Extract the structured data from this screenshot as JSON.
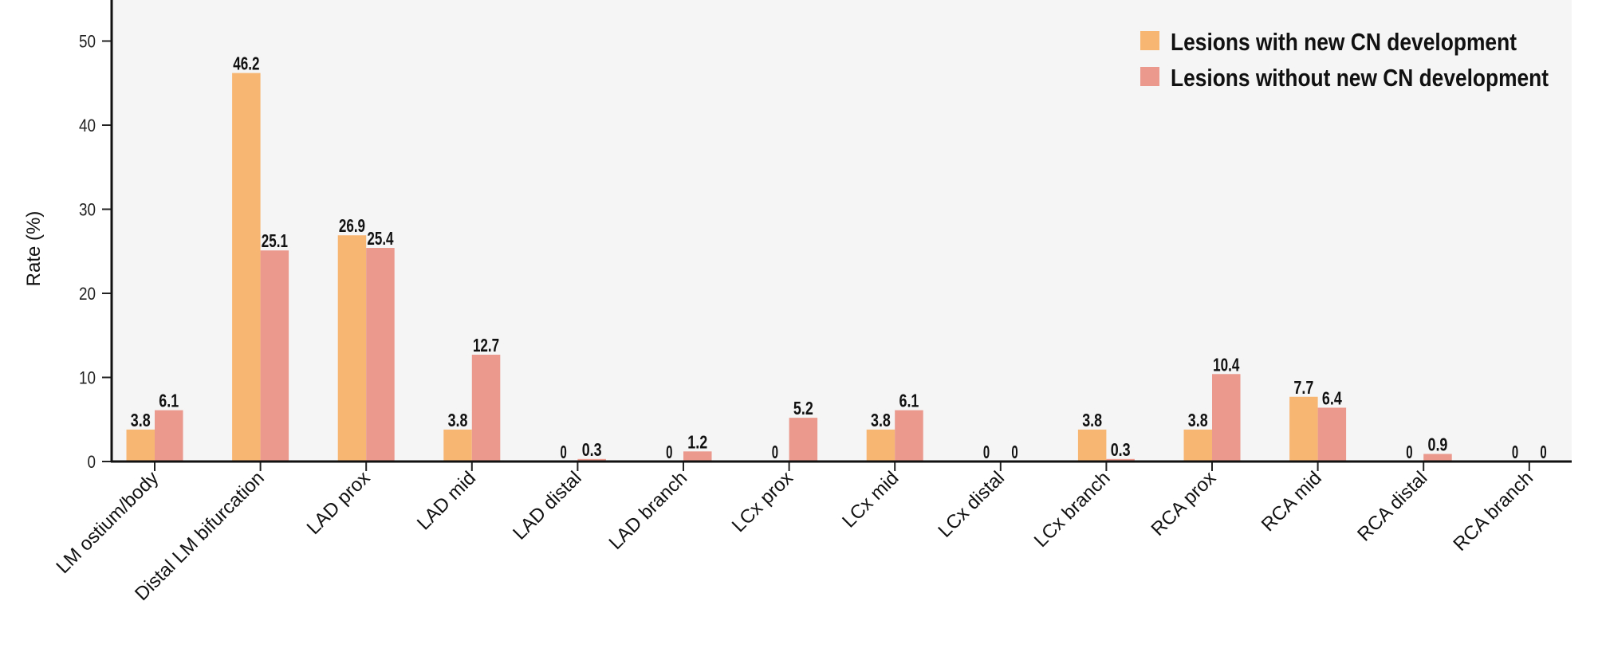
{
  "chart_data": {
    "type": "bar",
    "title": "",
    "xlabel": "",
    "ylabel": "Rate (%)",
    "ylim": [
      0,
      55
    ],
    "yticks": [
      0,
      10,
      20,
      30,
      40,
      50
    ],
    "grid": false,
    "legend_position": "top-right",
    "categories": [
      "LM ostium/body",
      "Distal LM bifurcation",
      "LAD prox",
      "LAD mid",
      "LAD distal",
      "LAD branch",
      "LCx prox",
      "LCx mid",
      "LCx distal",
      "LCx branch",
      "RCA prox",
      "RCA mid",
      "RCA distal",
      "RCA branch"
    ],
    "series": [
      {
        "name": "Lesions with new CN development",
        "color": "#f8b673",
        "values": [
          3.8,
          46.2,
          26.9,
          3.8,
          0,
          0,
          0,
          3.8,
          0,
          3.8,
          3.8,
          7.7,
          0,
          0
        ]
      },
      {
        "name": "Lesions without new CN development",
        "color": "#ea998c",
        "values": [
          6.1,
          25.1,
          25.4,
          12.7,
          0.3,
          1.2,
          5.2,
          6.1,
          0,
          0.3,
          10.4,
          6.4,
          0.9,
          0
        ]
      }
    ],
    "background": "#f5f5f5"
  }
}
